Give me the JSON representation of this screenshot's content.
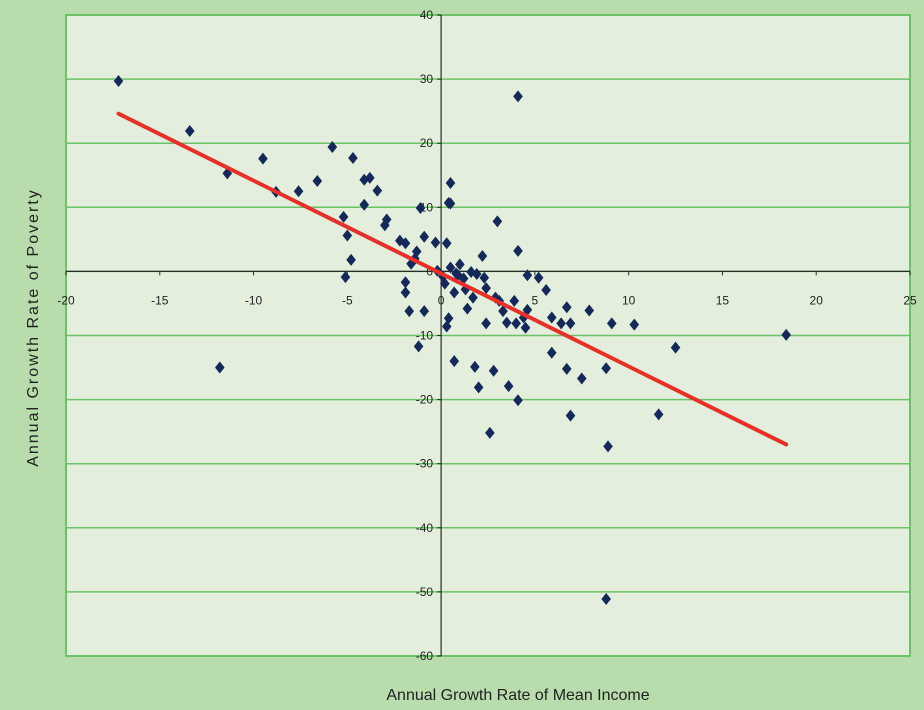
{
  "colors": {
    "page_background": "#b9dcac",
    "plot_background": "#e3efdc",
    "grid": "#6cc266",
    "axis": "#2a2a2a",
    "marker": "#14285a",
    "trendline": "#e8302a"
  },
  "chart_data": {
    "type": "scatter",
    "title": "",
    "xlabel": "Annual Growth Rate of Mean Income",
    "ylabel": "Annual Growth Rate of Poverty",
    "xlim": [
      -20,
      25
    ],
    "ylim": [
      -60,
      40
    ],
    "xticks": [
      -20,
      -15,
      -10,
      -5,
      0,
      5,
      10,
      15,
      20,
      25
    ],
    "yticks": [
      -60,
      -50,
      -40,
      -30,
      -20,
      -10,
      0,
      10,
      20,
      30,
      40
    ],
    "x_tick_labels": [
      "-20",
      "-15",
      "-10",
      "-5",
      "0",
      "5",
      "10",
      "15",
      "20",
      "25"
    ],
    "y_tick_labels": [
      "-60",
      "-50",
      "-40",
      "-30",
      "-20",
      "-10",
      "0",
      "10",
      "20",
      "30",
      "40"
    ],
    "grid": {
      "horizontal": true,
      "vertical": false
    },
    "marker": "diamond",
    "legend": "none",
    "points": [
      {
        "x": -17.2,
        "y": 29.7
      },
      {
        "x": -13.4,
        "y": 21.9
      },
      {
        "x": -11.4,
        "y": 15.3
      },
      {
        "x": -11.8,
        "y": -15.0
      },
      {
        "x": -9.5,
        "y": 17.6
      },
      {
        "x": -8.8,
        "y": 12.4
      },
      {
        "x": -7.6,
        "y": 12.5
      },
      {
        "x": -6.6,
        "y": 14.1
      },
      {
        "x": -5.8,
        "y": 19.4
      },
      {
        "x": -5.2,
        "y": 8.5
      },
      {
        "x": -5.0,
        "y": 5.6
      },
      {
        "x": -4.8,
        "y": 1.8
      },
      {
        "x": -5.1,
        "y": -0.9
      },
      {
        "x": -4.7,
        "y": 17.7
      },
      {
        "x": -4.1,
        "y": 14.3
      },
      {
        "x": -3.8,
        "y": 14.6
      },
      {
        "x": -4.1,
        "y": 10.4
      },
      {
        "x": -3.4,
        "y": 12.6
      },
      {
        "x": -2.9,
        "y": 8.1
      },
      {
        "x": -3.0,
        "y": 7.2
      },
      {
        "x": -2.2,
        "y": 4.8
      },
      {
        "x": -1.9,
        "y": 4.4
      },
      {
        "x": -1.9,
        "y": -1.7
      },
      {
        "x": -1.9,
        "y": -3.3
      },
      {
        "x": -1.6,
        "y": 1.2
      },
      {
        "x": -1.4,
        "y": 2.0
      },
      {
        "x": -1.3,
        "y": 3.1
      },
      {
        "x": -1.7,
        "y": -6.2
      },
      {
        "x": -1.1,
        "y": 9.9
      },
      {
        "x": -0.9,
        "y": 5.4
      },
      {
        "x": -0.9,
        "y": -6.2
      },
      {
        "x": -1.2,
        "y": -11.7
      },
      {
        "x": -0.3,
        "y": 4.5
      },
      {
        "x": -0.2,
        "y": 0.1
      },
      {
        "x": 0.1,
        "y": -0.8
      },
      {
        "x": 0.2,
        "y": -1.9
      },
      {
        "x": 0.3,
        "y": 4.4
      },
      {
        "x": 0.4,
        "y": 10.7
      },
      {
        "x": 0.5,
        "y": 13.8
      },
      {
        "x": 0.5,
        "y": 10.6
      },
      {
        "x": 0.5,
        "y": 0.6
      },
      {
        "x": 0.4,
        "y": -7.3
      },
      {
        "x": 0.3,
        "y": -8.6
      },
      {
        "x": 0.7,
        "y": -3.3
      },
      {
        "x": 0.8,
        "y": -0.3
      },
      {
        "x": 0.9,
        "y": -0.6
      },
      {
        "x": 1.0,
        "y": 1.1
      },
      {
        "x": 0.7,
        "y": -14.0
      },
      {
        "x": 1.2,
        "y": -1.1
      },
      {
        "x": 1.3,
        "y": -2.8
      },
      {
        "x": 1.4,
        "y": -5.8
      },
      {
        "x": 1.6,
        "y": -0.1
      },
      {
        "x": 1.7,
        "y": -4.1
      },
      {
        "x": 1.9,
        "y": -0.4
      },
      {
        "x": 1.8,
        "y": -14.9
      },
      {
        "x": 2.0,
        "y": -18.1
      },
      {
        "x": 2.2,
        "y": 2.4
      },
      {
        "x": 2.3,
        "y": -1.0
      },
      {
        "x": 2.4,
        "y": -2.6
      },
      {
        "x": 2.4,
        "y": -8.1
      },
      {
        "x": 2.6,
        "y": -25.2
      },
      {
        "x": 2.8,
        "y": -15.5
      },
      {
        "x": 2.9,
        "y": -4.1
      },
      {
        "x": 3.0,
        "y": 7.8
      },
      {
        "x": 3.1,
        "y": -4.6
      },
      {
        "x": 3.3,
        "y": -6.2
      },
      {
        "x": 3.5,
        "y": -8.0
      },
      {
        "x": 3.6,
        "y": -17.9
      },
      {
        "x": 3.9,
        "y": -4.6
      },
      {
        "x": 4.0,
        "y": -8.1
      },
      {
        "x": 4.1,
        "y": -20.1
      },
      {
        "x": 4.1,
        "y": 27.3
      },
      {
        "x": 4.1,
        "y": 3.2
      },
      {
        "x": 4.4,
        "y": -7.2
      },
      {
        "x": 4.5,
        "y": -8.8
      },
      {
        "x": 4.6,
        "y": -0.6
      },
      {
        "x": 4.6,
        "y": -6.0
      },
      {
        "x": 5.2,
        "y": -1.0
      },
      {
        "x": 5.6,
        "y": -2.9
      },
      {
        "x": 5.9,
        "y": -7.2
      },
      {
        "x": 5.9,
        "y": -12.7
      },
      {
        "x": 6.4,
        "y": -8.1
      },
      {
        "x": 6.7,
        "y": -5.6
      },
      {
        "x": 6.7,
        "y": -15.2
      },
      {
        "x": 6.9,
        "y": -22.5
      },
      {
        "x": 6.9,
        "y": -8.1
      },
      {
        "x": 7.5,
        "y": -16.7
      },
      {
        "x": 7.9,
        "y": -6.1
      },
      {
        "x": 8.8,
        "y": -15.1
      },
      {
        "x": 8.9,
        "y": -27.3
      },
      {
        "x": 9.1,
        "y": -8.1
      },
      {
        "x": 8.8,
        "y": -51.1
      },
      {
        "x": 10.3,
        "y": -8.3
      },
      {
        "x": 11.6,
        "y": -22.3
      },
      {
        "x": 12.5,
        "y": -11.9
      },
      {
        "x": 18.4,
        "y": -9.9
      }
    ],
    "trendline": {
      "from": {
        "x": -17.2,
        "y": 24.6
      },
      "to": {
        "x": 18.4,
        "y": -27.0
      }
    }
  }
}
